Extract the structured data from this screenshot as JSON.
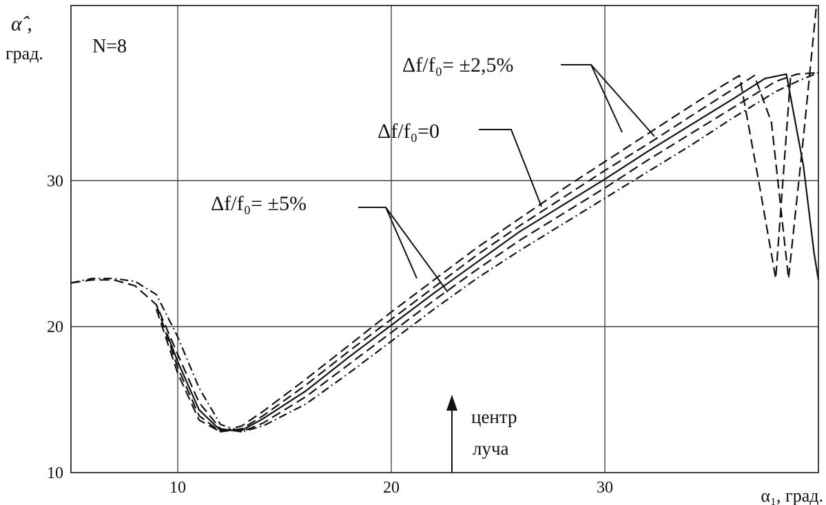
{
  "chart_data": {
    "type": "line",
    "xlabel": "α₁, град.",
    "ylabel": "град.",
    "ylabel_symbol": "α̂ ,",
    "xlim": [
      5,
      40
    ],
    "ylim": [
      10,
      42
    ],
    "x_ticks": [
      10,
      20,
      30
    ],
    "y_ticks": [
      10,
      20,
      30
    ],
    "grid": true,
    "annotations": {
      "n_label": "N=8",
      "label_pm25": "Δf/f₀= ±2,5%",
      "label_zero": "Δf/f₀=0",
      "label_pm5": "Δf/f₀= ±5%",
      "center_line1": "центр",
      "center_line2": "луча"
    },
    "center_x": 22.7,
    "series": [
      {
        "style": "dash-dot",
        "x": [
          5,
          6,
          7,
          8,
          9,
          10,
          11,
          12,
          13,
          14,
          16,
          18,
          20,
          22,
          24,
          26,
          28,
          30,
          32,
          34,
          36,
          38,
          39,
          40
        ],
        "y": [
          23,
          23.3,
          23.3,
          23.1,
          22.2,
          19.3,
          15.8,
          13.3,
          12.8,
          13.2,
          14.7,
          16.8,
          19,
          21.2,
          23.3,
          25.2,
          27,
          28.8,
          30.6,
          32.4,
          34.3,
          36.1,
          36.8,
          37.4
        ]
      },
      {
        "style": "dashed",
        "x": [
          5,
          6,
          7,
          8,
          9,
          10,
          11,
          12,
          13,
          14,
          16,
          18,
          20,
          22,
          24,
          26,
          28,
          30,
          32,
          34,
          36,
          38,
          39,
          40
        ],
        "y": [
          23,
          23.2,
          23.2,
          22.8,
          21.5,
          18.1,
          14.8,
          13,
          12.8,
          13.4,
          15.2,
          17.4,
          19.6,
          21.8,
          23.9,
          25.9,
          27.7,
          29.5,
          31.4,
          33.2,
          35,
          36.8,
          37.3,
          37.4
        ]
      },
      {
        "style": "solid",
        "x": [
          9.5,
          10,
          11,
          12,
          13,
          14,
          16,
          18,
          20,
          22,
          24,
          26,
          28,
          30,
          32,
          34,
          36,
          37.5,
          38.5,
          39.3,
          39.8,
          40
        ],
        "y": [
          19.5,
          17.6,
          14.3,
          12.9,
          12.9,
          13.7,
          15.6,
          17.9,
          20.1,
          22.3,
          24.4,
          26.5,
          28.3,
          30.1,
          32,
          33.8,
          35.6,
          37,
          37.3,
          31,
          25,
          23.2
        ]
      },
      {
        "style": "dashed",
        "x": [
          9,
          10,
          11,
          12,
          13,
          14,
          16,
          18,
          20,
          22,
          24,
          26,
          28,
          30,
          32,
          34,
          35.5,
          37,
          37.8,
          38.6,
          39.3,
          39.9
        ],
        "y": [
          21.5,
          17.2,
          13.9,
          12.8,
          13,
          13.9,
          16,
          18.3,
          20.5,
          22.7,
          24.9,
          26.9,
          28.8,
          30.7,
          32.5,
          34.4,
          35.8,
          37.2,
          34,
          23.3,
          33,
          41.9
        ]
      },
      {
        "style": "dashed",
        "x": [
          9,
          10,
          11,
          12,
          13,
          14,
          16,
          18,
          20,
          22,
          24,
          26,
          28,
          30,
          32,
          34,
          35.5,
          36.3,
          37.2,
          38,
          38.7
        ],
        "y": [
          21.2,
          16.8,
          13.6,
          12.8,
          13.2,
          14.2,
          16.4,
          18.7,
          21,
          23.2,
          25.4,
          27.4,
          29.4,
          31.3,
          33.2,
          35.1,
          36.5,
          37.2,
          30,
          23.3,
          37.2
        ]
      }
    ]
  }
}
